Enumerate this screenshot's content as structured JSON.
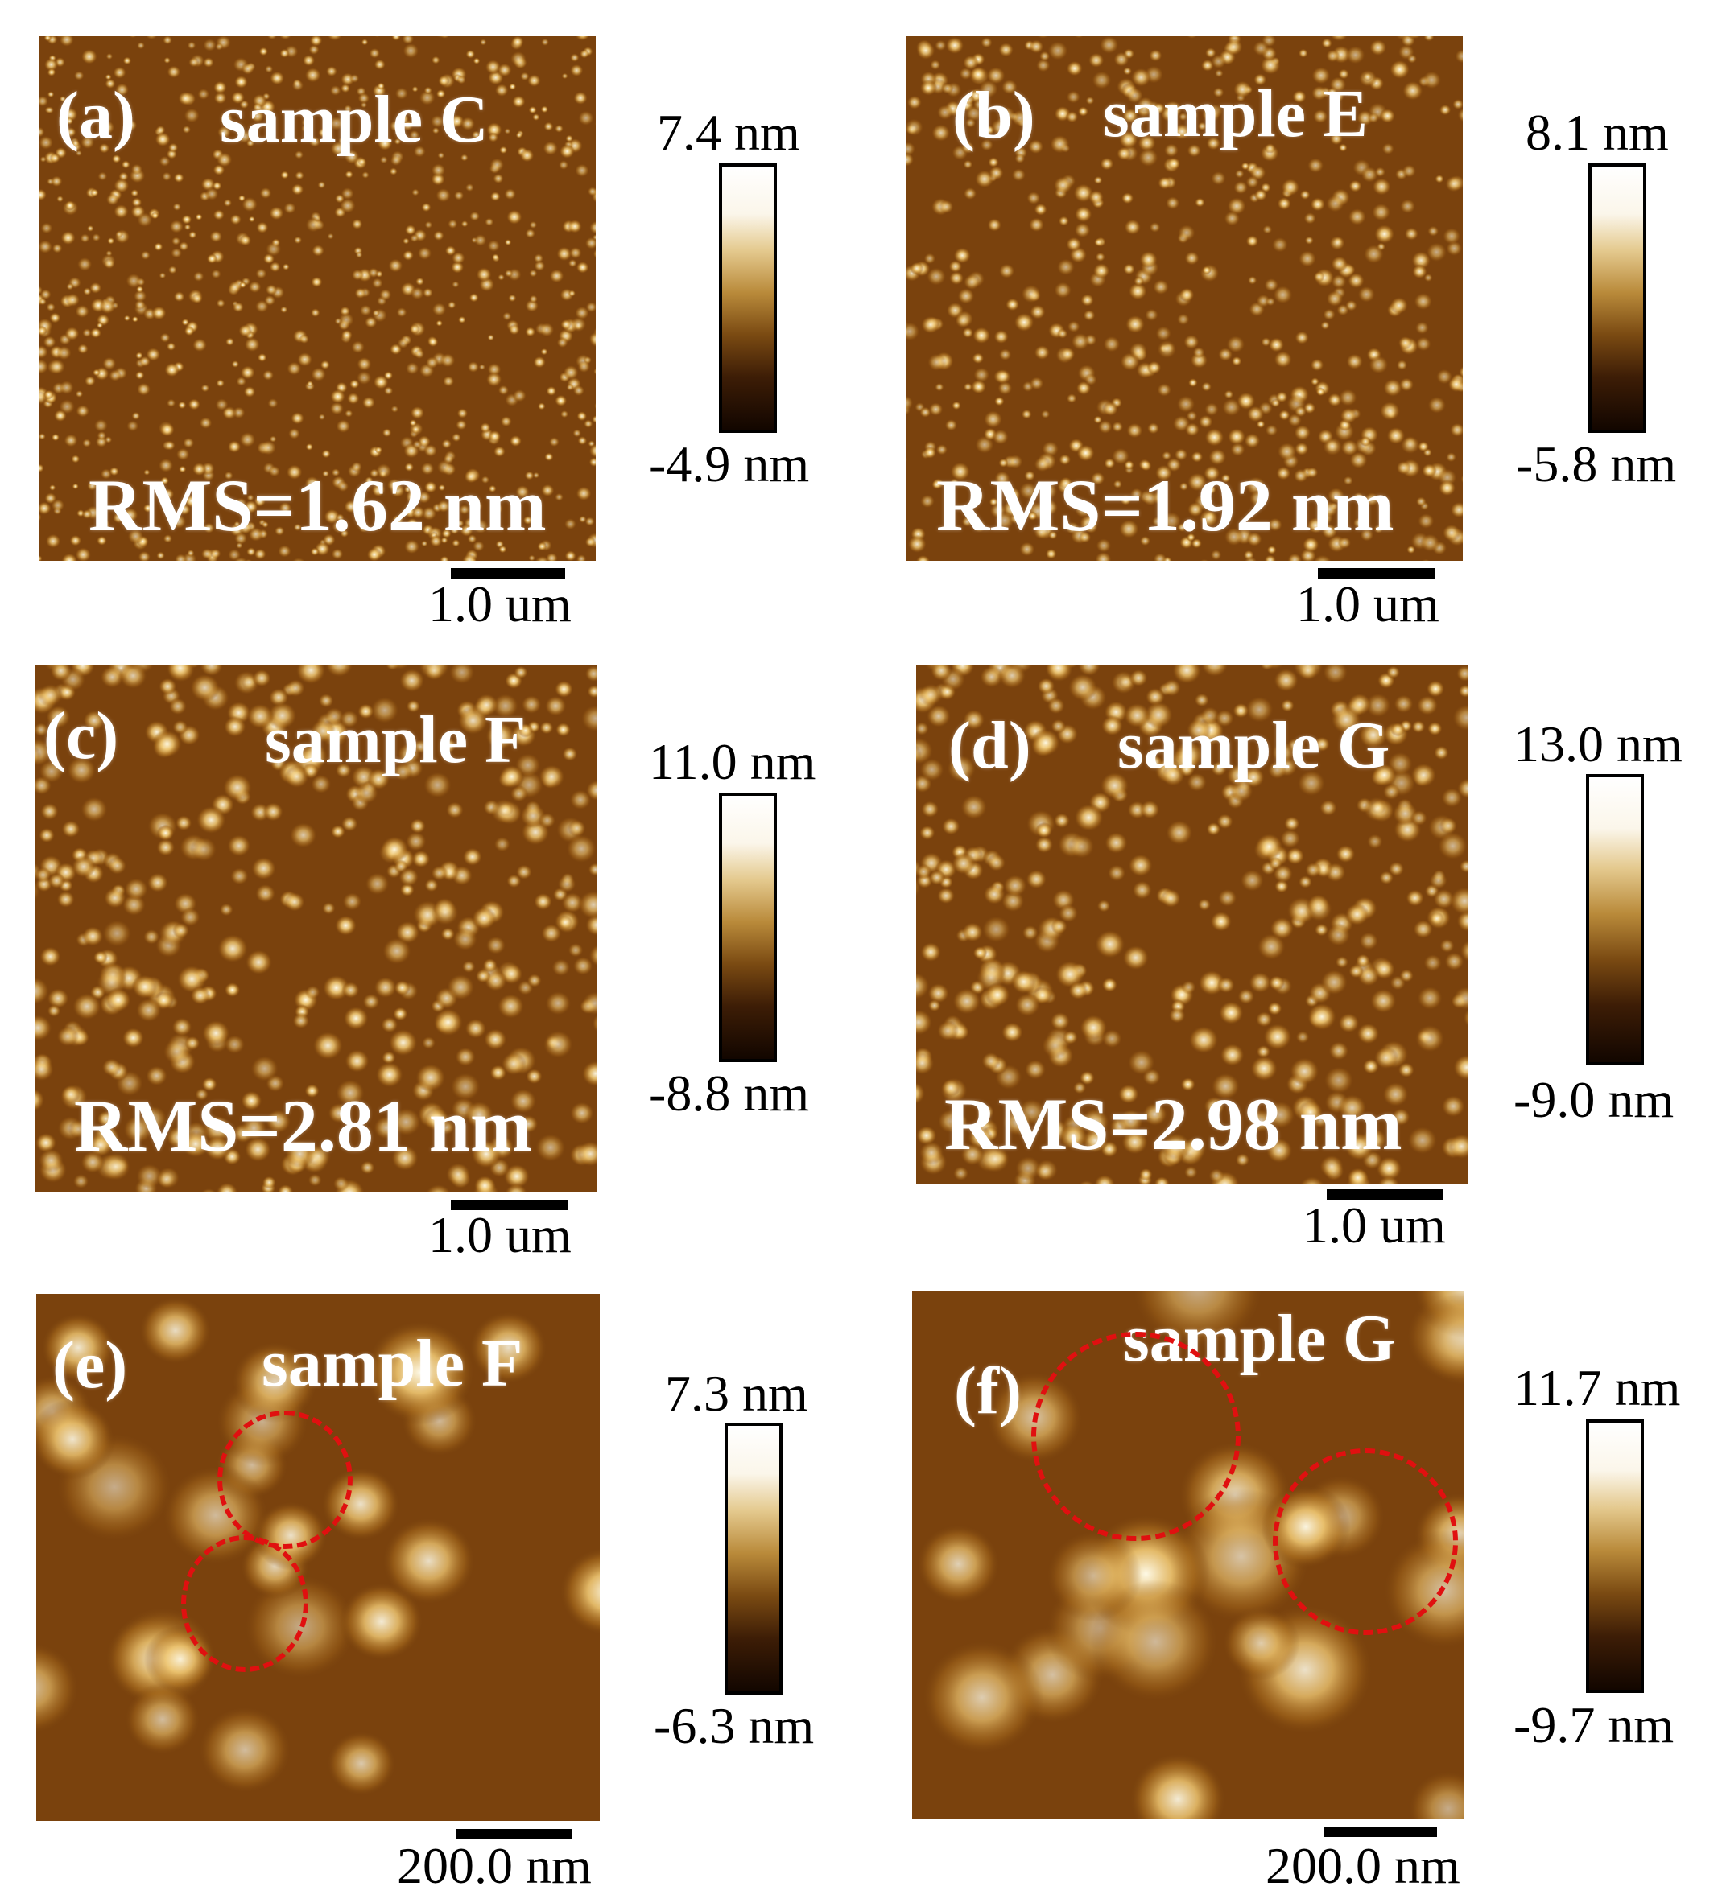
{
  "panels": [
    {
      "label": "(a)",
      "sample": "sample C",
      "rms": "RMS=1.62 nm",
      "scale_bar": "1.0 um",
      "color_max": "7.4 nm",
      "color_min": "-4.9 nm"
    },
    {
      "label": "(b)",
      "sample": "sample E",
      "rms": "RMS=1.92 nm",
      "scale_bar": "1.0 um",
      "color_max": "8.1 nm",
      "color_min": "-5.8 nm"
    },
    {
      "label": "(c)",
      "sample": "sample F",
      "rms": "RMS=2.81 nm",
      "scale_bar": "1.0 um",
      "color_max": "11.0 nm",
      "color_min": "-8.8 nm"
    },
    {
      "label": "(d)",
      "sample": "sample G",
      "rms": "RMS=2.98 nm",
      "scale_bar": "1.0 um",
      "color_max": "13.0 nm",
      "color_min": "-9.0 nm"
    },
    {
      "label": "(e)",
      "sample": "sample F",
      "rms": "",
      "scale_bar": "200.0 nm",
      "color_max": "7.3 nm",
      "color_min": "-6.3 nm"
    },
    {
      "label": "(f)",
      "sample": "sample G",
      "rms": "",
      "scale_bar": "200.0 nm",
      "color_max": "11.7 nm",
      "color_min": "-9.7 nm"
    }
  ],
  "colors": {
    "afm_base": "#6e3a0a",
    "highlight_circle": "#e01010",
    "colorbar_top": "#ffffff",
    "colorbar_bottom": "#120600"
  }
}
